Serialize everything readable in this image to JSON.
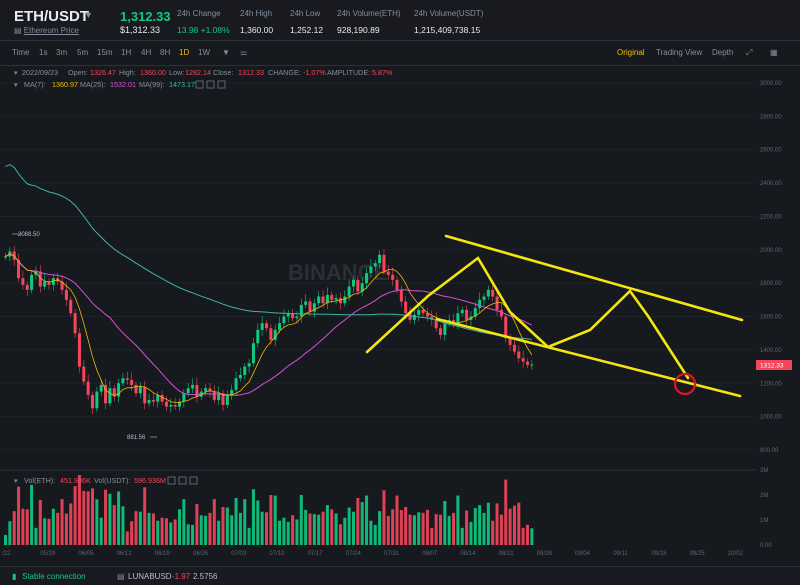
{
  "header": {
    "symbol": "ETH/USDT",
    "subtitle": "Ethereum Price",
    "last_price": "1,312.33",
    "last_price_usd": "$1,312.33",
    "stats": [
      {
        "label": "24h Change",
        "value": "13.98 +1.08%",
        "positive": true
      },
      {
        "label": "24h High",
        "value": "1,360.00"
      },
      {
        "label": "24h Low",
        "value": "1,252.12"
      },
      {
        "label": "24h Volume(ETH)",
        "value": "928,190.89"
      },
      {
        "label": "24h Volume(USDT)",
        "value": "1,215,409,738.15"
      }
    ]
  },
  "toolbar": {
    "intervals": [
      "Time",
      "1s",
      "3m",
      "5m",
      "15m",
      "1H",
      "4H",
      "8H",
      "1D",
      "1W"
    ],
    "active_interval": "1D",
    "views": [
      "Original",
      "Trading View",
      "Depth"
    ],
    "active_view": "Original"
  },
  "ohlc": {
    "date": "2022/09/23",
    "open_label": "Open:",
    "open": "1326.47",
    "high_label": "High:",
    "high": "1360.00",
    "low_label": "Low:",
    "low": "1282.14",
    "close_label": "Close:",
    "close": "1312.33",
    "change_label": "CHANGE:",
    "change": "-1.07%",
    "amp_label": "AMPLITUDE:",
    "amp": "5.87%"
  },
  "ma": {
    "label": "MA(7):",
    "ma7": "1360.97",
    "ma25_label": "MA(25):",
    "ma25": "1532.01",
    "ma99_label": "MA(99):",
    "ma99": "1473.17",
    "ma7_color": "#f0b90b",
    "ma25_color": "#d84fd3",
    "ma99_color": "#3fb5a3"
  },
  "vol": {
    "label": "Vol(ETH):",
    "eth": "451.936K",
    "usdt_label": "Vol(USDT):",
    "usdt": "596.936M"
  },
  "watermark": "BINANCE",
  "price_axis": [
    "3000.00",
    "2800.00",
    "2600.00",
    "2400.00",
    "2200.00",
    "2000.00",
    "1800.00",
    "1600.00",
    "1400.00",
    "1200.00",
    "1000.00",
    "800.00"
  ],
  "vol_axis": [
    "3M",
    "2M",
    "1M",
    "0.00"
  ],
  "date_axis": [
    "/22",
    "05/29",
    "06/05",
    "06/12",
    "06/19",
    "06/26",
    "07/03",
    "07/10",
    "07/17",
    "07/24",
    "07/31",
    "08/07",
    "08/14",
    "08/21",
    "08/28",
    "09/04",
    "09/11",
    "09/18",
    "09/25",
    "10/02"
  ],
  "price_tag": "1312.33",
  "high_marker": "2088.50",
  "low_marker": "881.56",
  "status": {
    "connection": "Stable connection",
    "pair": "LUNABUSD",
    "pair_change": "-1.97",
    "pair_price": "2.5756"
  },
  "colors": {
    "up": "#0ecb81",
    "down": "#f6465d",
    "accent": "#f0b90b",
    "overlay": "#f5e50f",
    "circle": "#e4141e"
  }
}
